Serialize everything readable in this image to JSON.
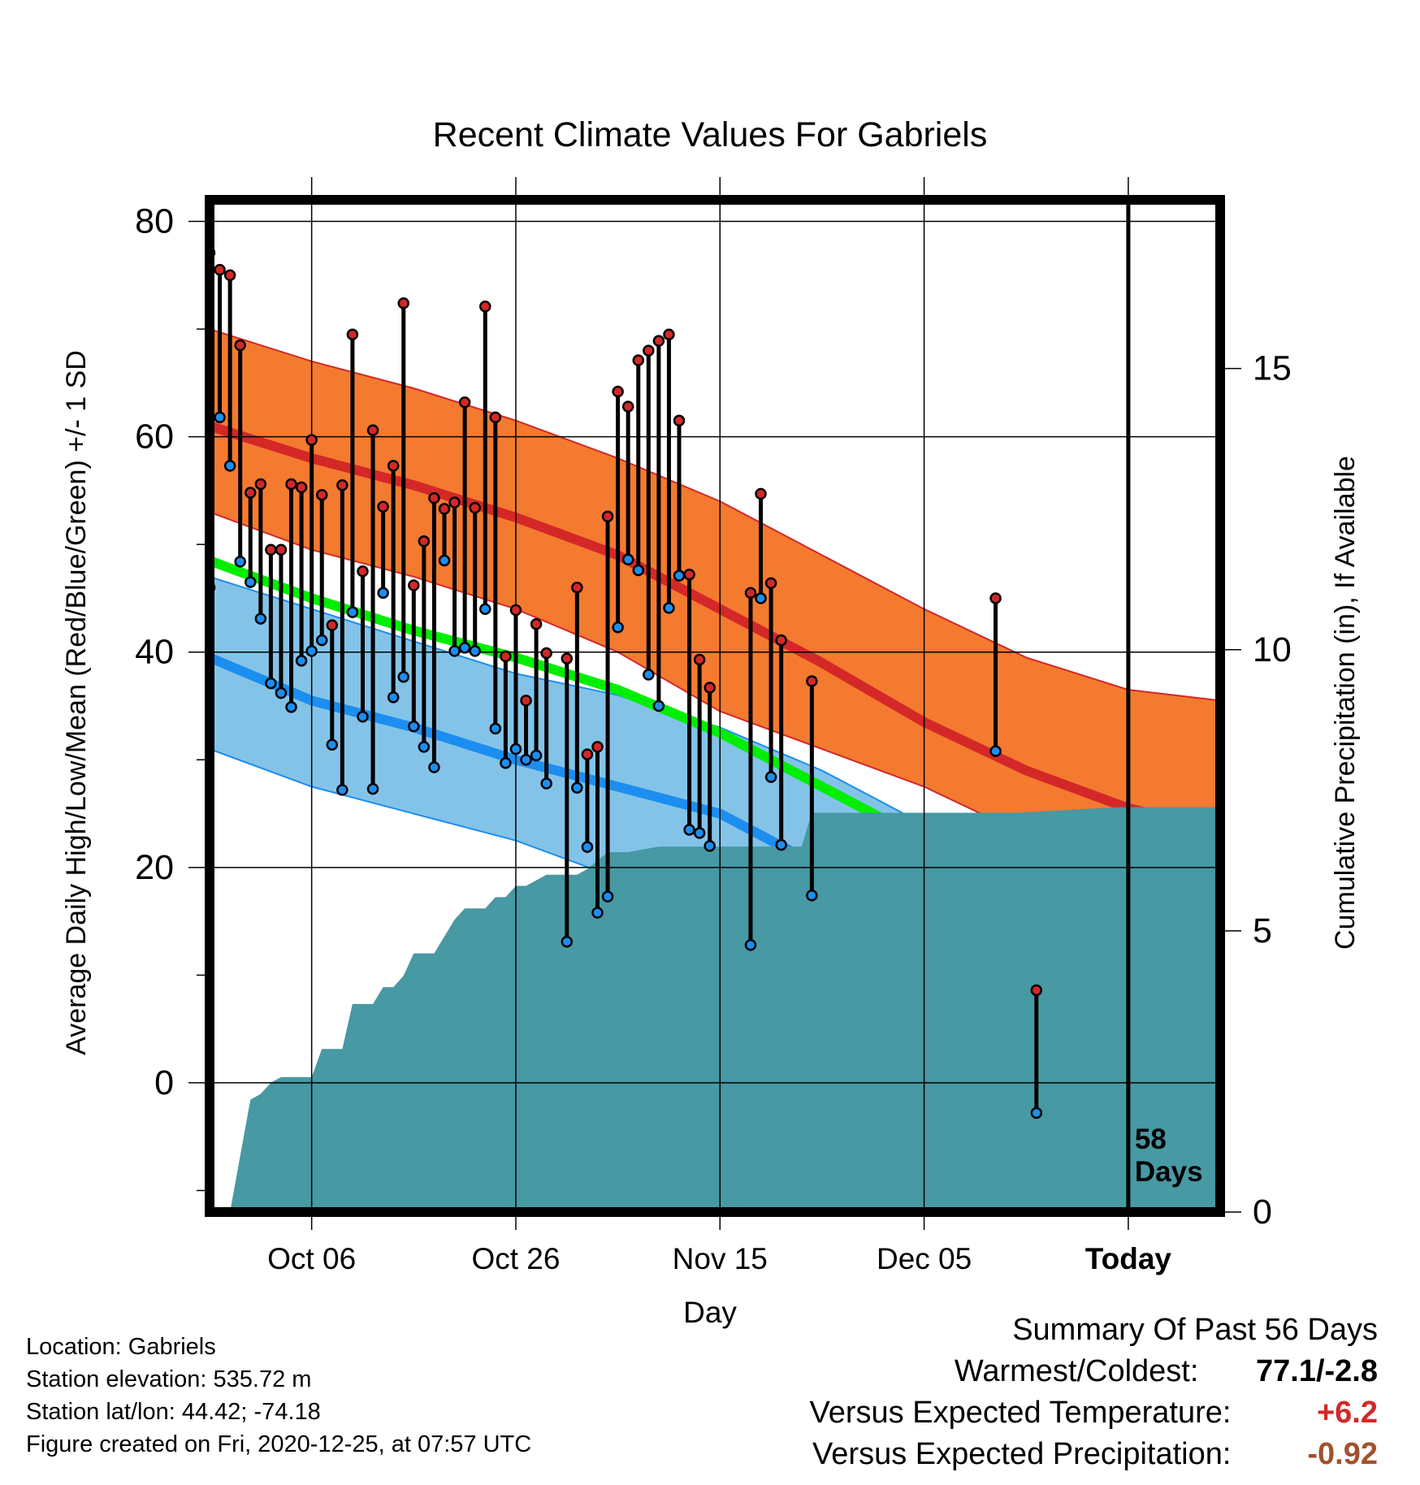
{
  "chart_data": {
    "type": "line",
    "title": "Recent Climate Values For Gabriels",
    "xlabel": "Day",
    "ylabel": "Average Daily High/Low/Mean (Red/Blue/Green) +/- 1 SD",
    "y2label": "Cumulative Precipitation (in), If Available",
    "ylim": [
      -12,
      82
    ],
    "y2lim": [
      0,
      18
    ],
    "x_day_range": [
      -89,
      10
    ],
    "x_tick_days": [
      -79,
      -59,
      -39,
      -19,
      1
    ],
    "x_tick_labels": [
      "Oct 06",
      "Oct 26",
      "Nov 15",
      "Dec 05",
      "Today"
    ],
    "y_ticks": [
      0,
      20,
      40,
      60,
      80
    ],
    "y_tick_labels": [
      "0",
      "20",
      "40",
      "60",
      "80"
    ],
    "y2_ticks": [
      0,
      5,
      10,
      15
    ],
    "y2_tick_labels": [
      "0",
      "5",
      "10",
      "15"
    ],
    "grid": true,
    "today_marker_label": "58\nDays",
    "colors": {
      "high_band": "#f47a30",
      "high_line": "#d42828",
      "low_band": "#84c3e8",
      "low_line": "#1c8ef0",
      "mean_line": "#00ee00",
      "overlap_band": "#9a1114",
      "precip_fill": "#4799a4",
      "high_marker": "#d42828",
      "low_marker": "#1c8ef0"
    },
    "normals": {
      "days": [
        -89,
        -79,
        -69,
        -59,
        -49,
        -39,
        -29,
        -19,
        -9,
        1,
        10
      ],
      "high_mean": [
        61,
        58,
        55.5,
        52.5,
        49,
        44,
        39,
        33.5,
        29,
        25.5,
        23.5
      ],
      "high_upper": [
        70,
        67,
        64.5,
        61.5,
        58,
        54,
        49,
        44,
        39.5,
        36.5,
        35.5
      ],
      "high_lower": [
        53,
        49.5,
        47,
        44,
        40,
        34.5,
        31,
        27.5,
        23,
        20,
        19
      ],
      "low_mean": [
        39.5,
        35.5,
        33,
        30,
        27.5,
        25,
        20,
        15,
        10,
        5.5,
        3
      ],
      "low_upper": [
        47,
        44,
        41,
        38,
        36,
        33,
        29,
        24,
        19,
        14,
        11.5
      ],
      "low_lower": [
        31,
        27.5,
        25,
        22.5,
        19,
        14,
        7.5,
        0,
        -7.5,
        -11.5,
        -12
      ],
      "mean_line": [
        48.5,
        45,
        42,
        39.5,
        36.5,
        32.5,
        27.5,
        22.5,
        17.5,
        13.5,
        11
      ]
    },
    "observations": [
      {
        "day": -89,
        "high": 77.1,
        "low": 46
      },
      {
        "day": -88,
        "high": 75.5,
        "low": 61.8
      },
      {
        "day": -87,
        "high": 75,
        "low": 57.3
      },
      {
        "day": -86,
        "high": 68.5,
        "low": 48.4
      },
      {
        "day": -85,
        "high": 54.8,
        "low": 46.5
      },
      {
        "day": -84,
        "high": 55.6,
        "low": 43.1
      },
      {
        "day": -83,
        "high": 49.5,
        "low": 37.1
      },
      {
        "day": -82,
        "high": 49.5,
        "low": 36.2
      },
      {
        "day": -81,
        "high": 55.6,
        "low": 34.9
      },
      {
        "day": -80,
        "high": 55.3,
        "low": 39.2
      },
      {
        "day": -79,
        "high": 59.7,
        "low": 40.1
      },
      {
        "day": -78,
        "high": 54.6,
        "low": 41.1
      },
      {
        "day": -77,
        "high": 42.5,
        "low": 31.4
      },
      {
        "day": -76,
        "high": 55.5,
        "low": 27.2
      },
      {
        "day": -75,
        "high": 69.5,
        "low": 43.7
      },
      {
        "day": -74,
        "high": 47.5,
        "low": 34
      },
      {
        "day": -73,
        "high": 60.6,
        "low": 27.3
      },
      {
        "day": -72,
        "high": 53.5,
        "low": 45.5
      },
      {
        "day": -71,
        "high": 57.3,
        "low": 35.8
      },
      {
        "day": -70,
        "high": 72.4,
        "low": 37.7
      },
      {
        "day": -69,
        "high": 46.2,
        "low": 33.1
      },
      {
        "day": -68,
        "high": 50.3,
        "low": 31.2
      },
      {
        "day": -67,
        "high": 54.3,
        "low": 29.3
      },
      {
        "day": -66,
        "high": 53.3,
        "low": 48.5
      },
      {
        "day": -65,
        "high": 53.9,
        "low": 40.1
      },
      {
        "day": -64,
        "high": 63.2,
        "low": 40.4
      },
      {
        "day": -63,
        "high": 53.4,
        "low": 40.1
      },
      {
        "day": -62,
        "high": 72.1,
        "low": 44
      },
      {
        "day": -61,
        "high": 61.8,
        "low": 32.9
      },
      {
        "day": -60,
        "high": 39.6,
        "low": 29.7
      },
      {
        "day": -59,
        "high": 43.9,
        "low": 31
      },
      {
        "day": -58,
        "high": 35.5,
        "low": 30
      },
      {
        "day": -57,
        "high": 42.6,
        "low": 30.4
      },
      {
        "day": -56,
        "high": 39.9,
        "low": 27.8
      },
      {
        "day": -54,
        "high": 39.4,
        "low": 13.1
      },
      {
        "day": -53,
        "high": 46,
        "low": 27.4
      },
      {
        "day": -52,
        "high": 30.5,
        "low": 21.9
      },
      {
        "day": -51,
        "high": 31.2,
        "low": 15.8
      },
      {
        "day": -50,
        "high": 52.6,
        "low": 17.3
      },
      {
        "day": -49,
        "high": 64.2,
        "low": 42.3
      },
      {
        "day": -48,
        "high": 62.8,
        "low": 48.6
      },
      {
        "day": -47,
        "high": 67.1,
        "low": 47.6
      },
      {
        "day": -46,
        "high": 68,
        "low": 37.9
      },
      {
        "day": -45,
        "high": 68.9,
        "low": 35
      },
      {
        "day": -44,
        "high": 69.5,
        "low": 44.1
      },
      {
        "day": -43,
        "high": 61.5,
        "low": 47.1
      },
      {
        "day": -42,
        "high": 47.2,
        "low": 23.5
      },
      {
        "day": -41,
        "high": 39.3,
        "low": 23.2
      },
      {
        "day": -40,
        "high": 36.7,
        "low": 22
      },
      {
        "day": -36,
        "high": 45.5,
        "low": 12.8
      },
      {
        "day": -35,
        "high": 54.7,
        "low": 45
      },
      {
        "day": -34,
        "high": 46.4,
        "low": 28.4
      },
      {
        "day": -33,
        "high": 41.1,
        "low": 22.1
      },
      {
        "day": -30,
        "high": 37.3,
        "low": 17.4
      },
      {
        "day": -12,
        "high": 45,
        "low": 30.8
      },
      {
        "day": -8,
        "high": 8.6,
        "low": -2.8
      }
    ],
    "precipitation": {
      "days": [
        -89,
        -87,
        -85,
        -84,
        -83,
        -82,
        -80,
        -79,
        -78,
        -77,
        -76,
        -75,
        -74,
        -73,
        -72,
        -71,
        -70,
        -69,
        -68,
        -67,
        -66,
        -65,
        -64,
        -63,
        -62,
        -61,
        -60,
        -59,
        -58,
        -57,
        -56,
        -55,
        -54,
        -53,
        -52,
        -50,
        -48,
        -45,
        -42,
        -39,
        -36,
        -33,
        -31,
        -30,
        -28,
        -20,
        -10,
        0,
        10
      ],
      "values": [
        0,
        0,
        2,
        2.1,
        2.3,
        2.4,
        2.4,
        2.4,
        2.9,
        2.9,
        2.9,
        3.7,
        3.7,
        3.7,
        4,
        4,
        4.2,
        4.6,
        4.6,
        4.6,
        4.9,
        5.2,
        5.4,
        5.4,
        5.4,
        5.6,
        5.6,
        5.8,
        5.8,
        5.9,
        6,
        6,
        6,
        6,
        6.1,
        6.4,
        6.4,
        6.5,
        6.5,
        6.5,
        6.5,
        6.5,
        6.5,
        7.1,
        7.1,
        7.1,
        7.1,
        7.2,
        7.2
      ]
    }
  },
  "info": {
    "location": "Location: Gabriels",
    "elevation": "Station elevation: 535.72 m",
    "latlon": "Station lat/lon: 44.42; -74.18",
    "created": "Figure created on Fri, 2020-12-25, at 07:57 UTC"
  },
  "summary": {
    "heading": "Summary Of Past 56 Days",
    "warmest_label": "Warmest/Coldest:",
    "warmest_value": "77.1/-2.8",
    "temp_label": "Versus Expected Temperature:",
    "temp_value": "+6.2",
    "temp_color": "#d42828",
    "precip_label": "Versus Expected Precipitation:",
    "precip_value": "-0.92",
    "precip_color": "#a0522d"
  }
}
